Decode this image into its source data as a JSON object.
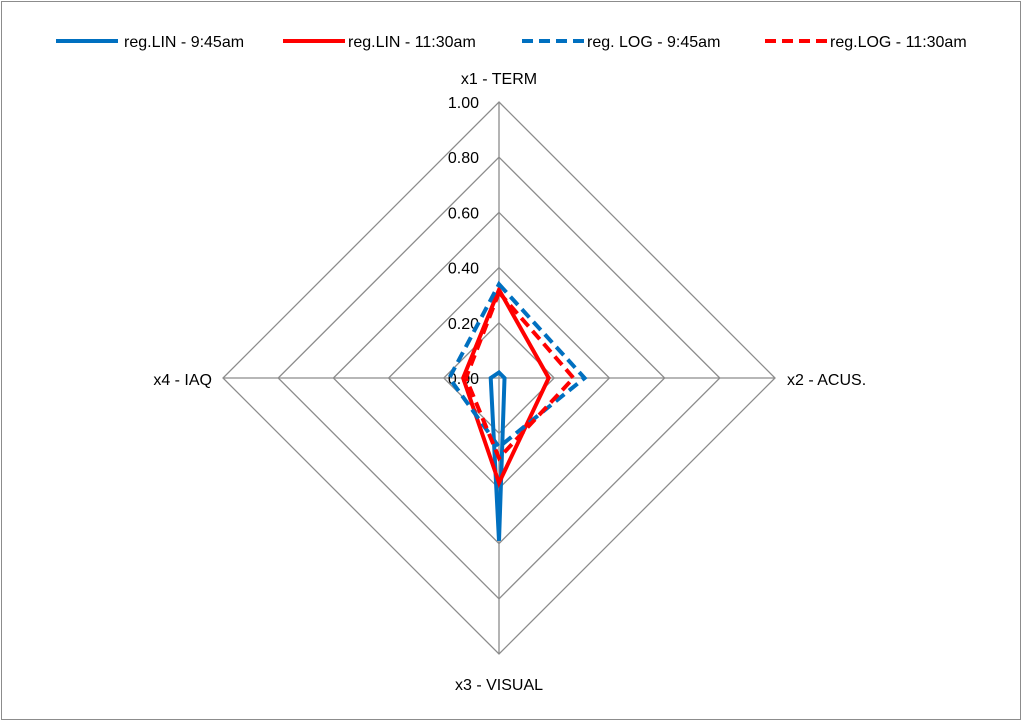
{
  "chart_data": {
    "type": "radar",
    "axes": [
      "x1 - TERM",
      "x2 - ACUS.",
      "x3 - VISUAL",
      "x4 - IAQ"
    ],
    "rlim": [
      0,
      1
    ],
    "ticks": [
      "0.00",
      "0.20",
      "0.40",
      "0.60",
      "0.80",
      "1.00"
    ],
    "grid": true,
    "legend_position": "top",
    "series": [
      {
        "name": "reg.LIN - 9:45am",
        "values": [
          0.02,
          0.02,
          0.59,
          0.03
        ],
        "color": "#0070c0",
        "dash": "solid"
      },
      {
        "name": "reg.LIN - 11:30am",
        "values": [
          0.32,
          0.18,
          0.38,
          0.13
        ],
        "color": "#ff0000",
        "dash": "solid"
      },
      {
        "name": "reg. LOG - 9:45am",
        "values": [
          0.34,
          0.31,
          0.25,
          0.18
        ],
        "color": "#0070c0",
        "dash": "dashed"
      },
      {
        "name": "reg.LOG - 11:30am",
        "values": [
          0.31,
          0.27,
          0.29,
          0.12
        ],
        "color": "#ff0000",
        "dash": "dashed"
      }
    ]
  }
}
